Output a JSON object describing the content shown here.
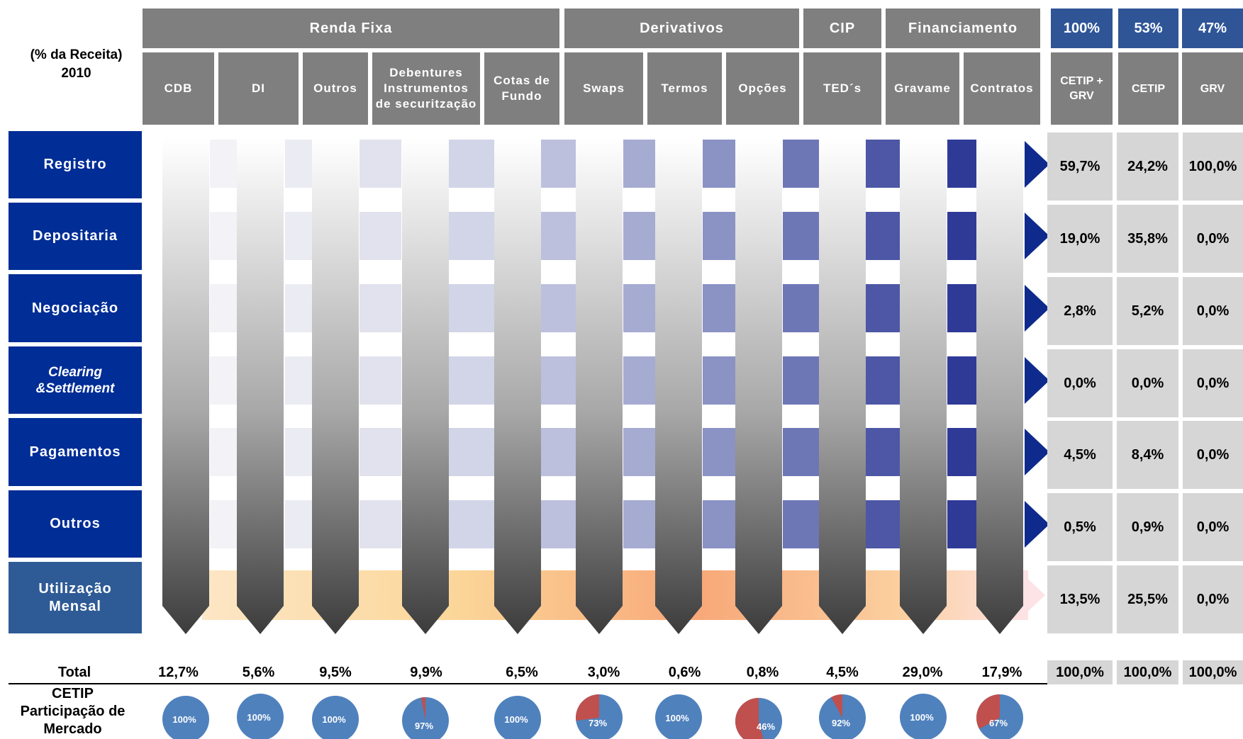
{
  "corner_label": "(% da Receita)\n2010",
  "groups": [
    {
      "label": "Renda Fixa"
    },
    {
      "label": "Derivativos"
    },
    {
      "label": "CIP"
    },
    {
      "label": "Financiamento"
    }
  ],
  "instruments": [
    {
      "label": "CDB",
      "total": "12,7%",
      "share": 100,
      "share_label": "100%"
    },
    {
      "label": "DI",
      "total": "5,6%",
      "share": 100,
      "share_label": "100%"
    },
    {
      "label": "Outros",
      "total": "9,5%",
      "share": 100,
      "share_label": "100%"
    },
    {
      "label": "Debentures\nInstrumentos\nde securitzação",
      "total": "9,9%",
      "share": 97,
      "share_label": "97%"
    },
    {
      "label": "Cotas de\nFundo",
      "total": "6,5%",
      "share": 100,
      "share_label": "100%"
    },
    {
      "label": "Swaps",
      "total": "3,0%",
      "share": 73,
      "share_label": "73%"
    },
    {
      "label": "Termos",
      "total": "0,6%",
      "share": 100,
      "share_label": "100%"
    },
    {
      "label": "Opções",
      "total": "0,8%",
      "share": 46,
      "share_label": "46%"
    },
    {
      "label": "TED´s",
      "total": "4,5%",
      "share": 92,
      "share_label": "92%"
    },
    {
      "label": "Gravame",
      "total": "29,0%",
      "share": 100,
      "share_label": "100%"
    },
    {
      "label": "Contratos",
      "total": "17,9%",
      "share": 67,
      "share_label": "67%"
    }
  ],
  "right_headers": [
    {
      "pct": "100%",
      "label": "CETIP +\nGRV"
    },
    {
      "pct": "53%",
      "label": "CETIP"
    },
    {
      "pct": "47%",
      "label": "GRV"
    }
  ],
  "rows": [
    {
      "label": "Registro",
      "italic": false,
      "values": [
        "59,7%",
        "24,2%",
        "100,0%"
      ]
    },
    {
      "label": "Depositaria",
      "italic": false,
      "values": [
        "19,0%",
        "35,8%",
        "0,0%"
      ]
    },
    {
      "label": "Negociação",
      "italic": false,
      "values": [
        "2,8%",
        "5,2%",
        "0,0%"
      ]
    },
    {
      "label": "Clearing\n&Settlement",
      "italic": true,
      "values": [
        "0,0%",
        "0,0%",
        "0,0%"
      ]
    },
    {
      "label": "Pagamentos",
      "italic": false,
      "values": [
        "4,5%",
        "8,4%",
        "0,0%"
      ]
    },
    {
      "label": "Outros",
      "italic": false,
      "values": [
        "0,5%",
        "0,9%",
        "0,0%"
      ]
    },
    {
      "label": "Utilização\nMensal",
      "italic": false,
      "values": [
        "13,5%",
        "25,5%",
        "0,0%"
      ]
    }
  ],
  "total_label": "Total",
  "total_right": [
    "100,0%",
    "100,0%",
    "100,0%"
  ],
  "share_label": "CETIP\nParticipação de\nMercado",
  "colors": {
    "header_grey": "#7f7f7f",
    "header_blue": "#2f5597",
    "row_label_blue": "#002d96",
    "utilizacao_blue": "#2e5b96",
    "value_cell_grey": "#d6d6d6",
    "arrow_blue": "#0e2a8c",
    "pie_main": "#4f81bd",
    "pie_other": "#c0504d"
  }
}
